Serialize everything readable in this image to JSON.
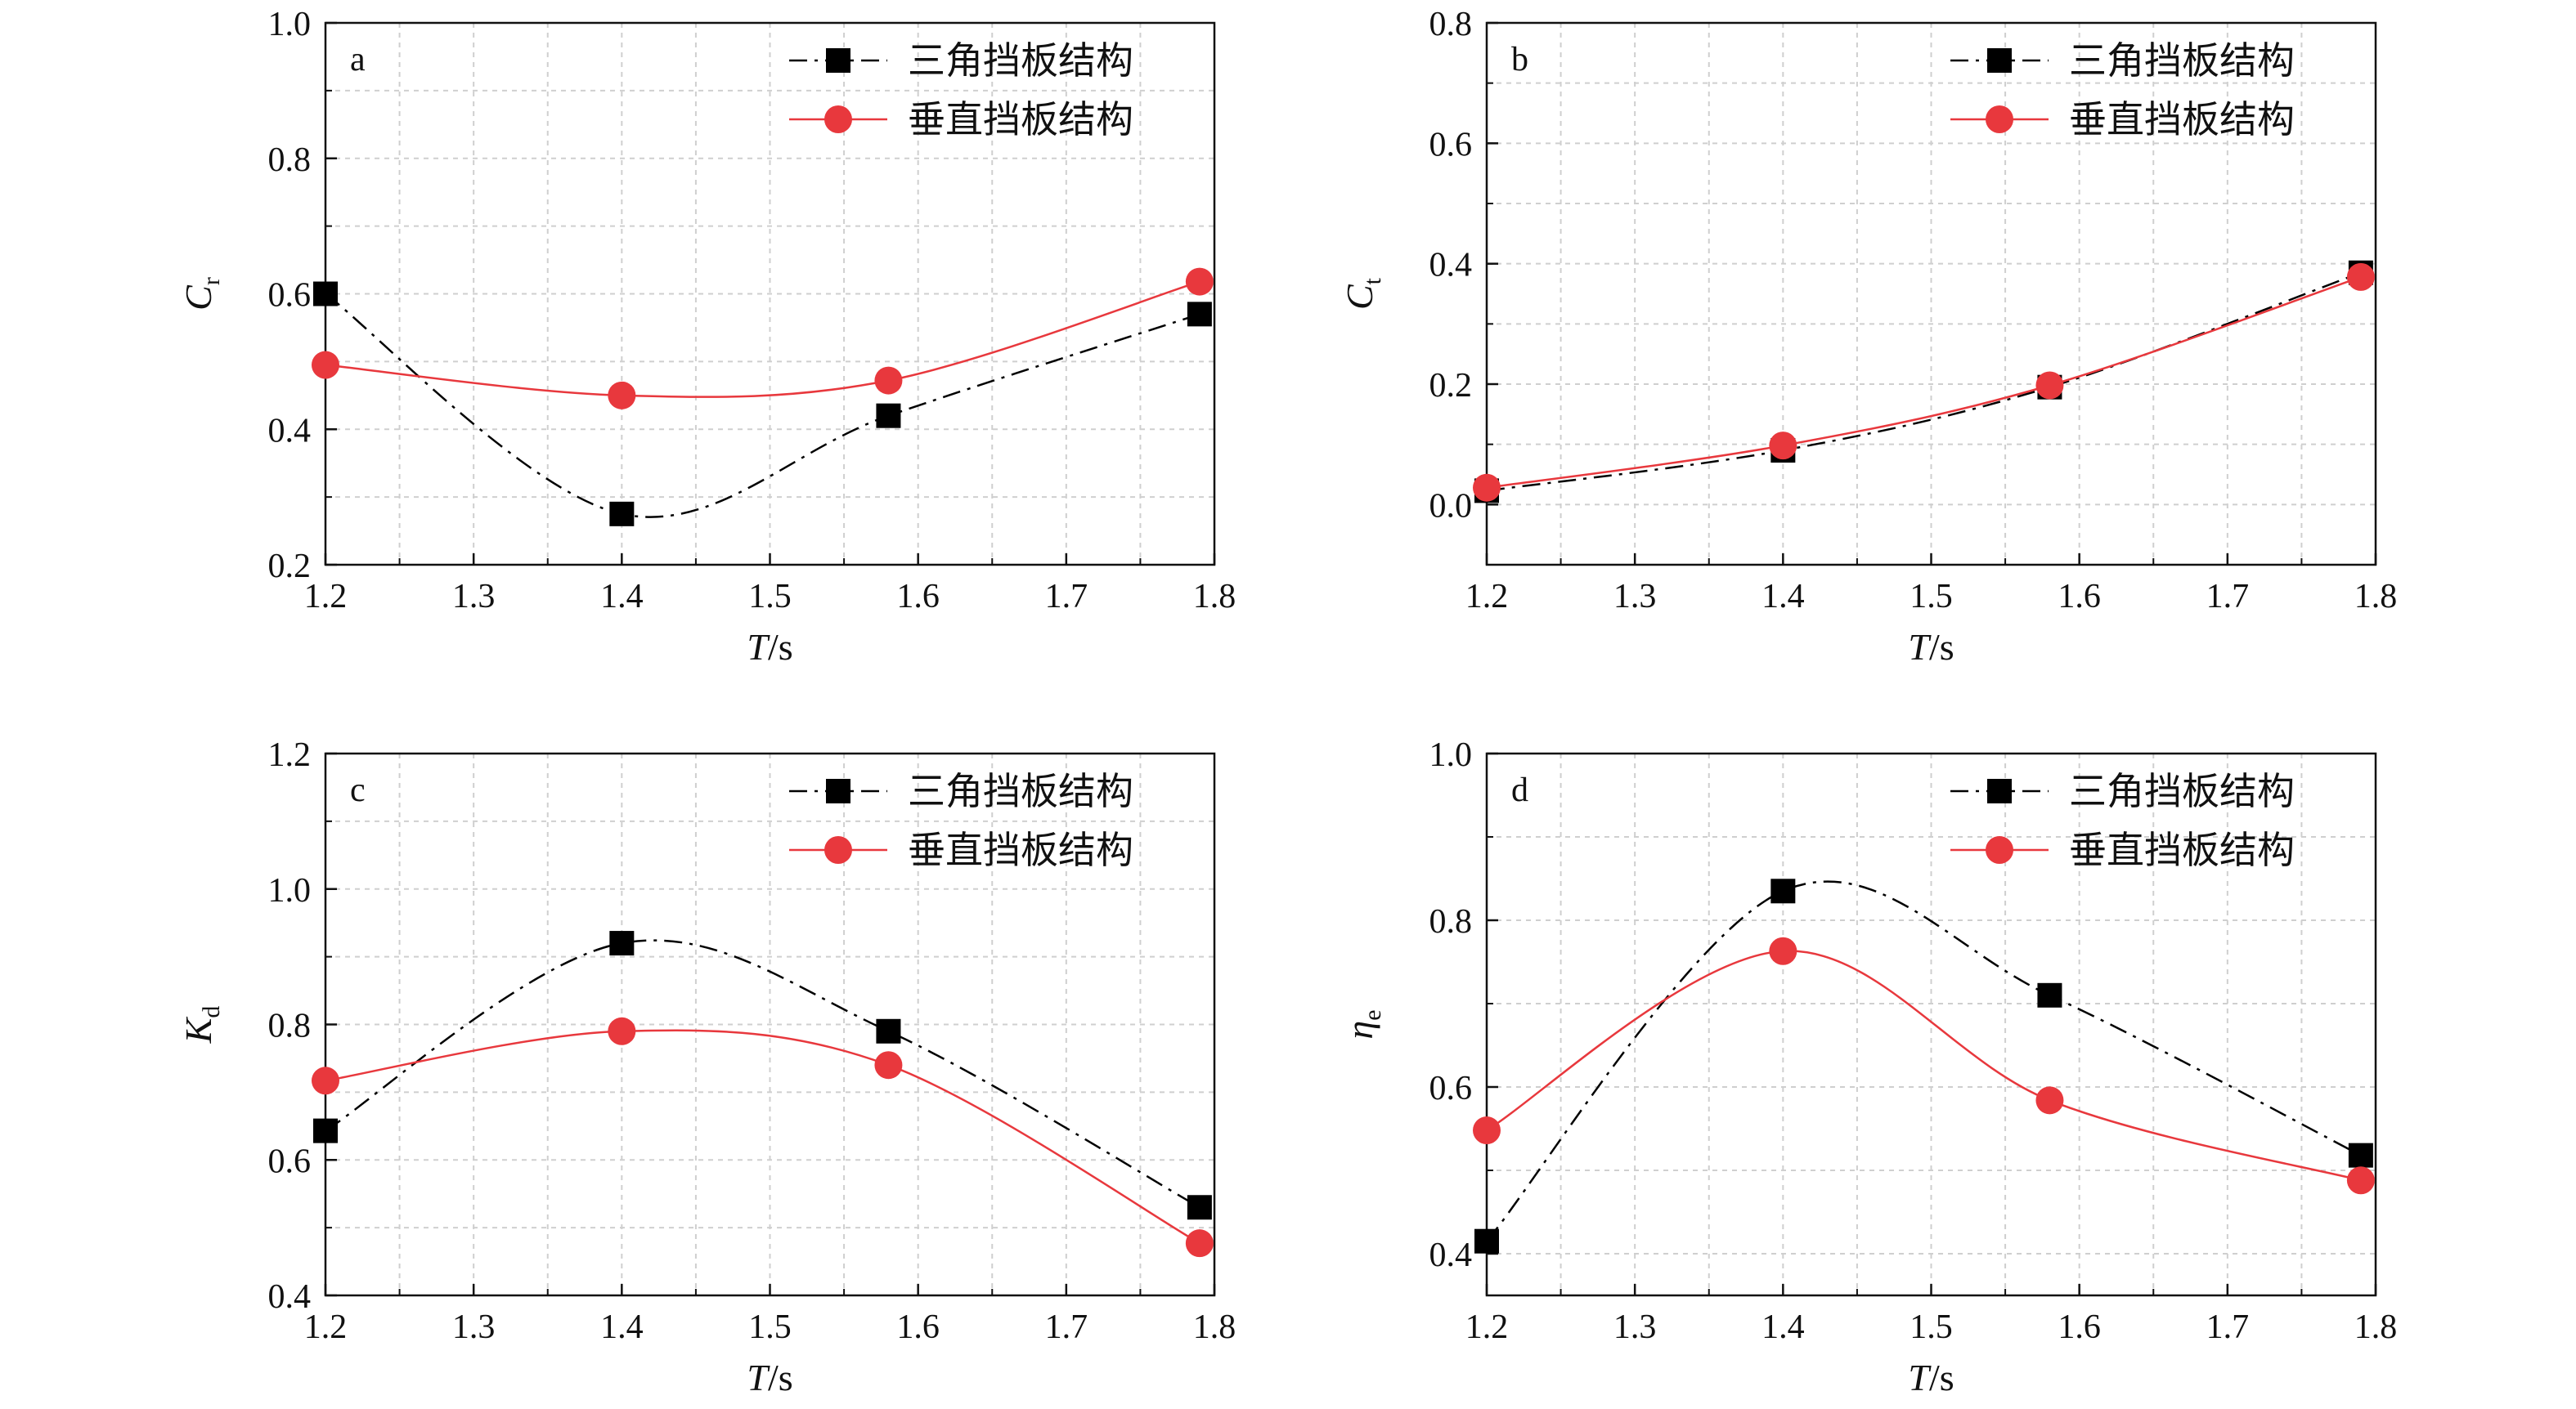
{
  "colors": {
    "triangle": "#000000",
    "vertical": "#e8383d",
    "grid": "#cfcfcf",
    "axis": "#111111"
  },
  "chart_data": [
    {
      "panel": "a",
      "type": "line",
      "xlabel": "T/s",
      "ylabel": "Cr",
      "xlim": [
        1.2,
        1.8
      ],
      "ylim": [
        0.2,
        1.0
      ],
      "xticks": [
        "1.2",
        "1.3",
        "1.4",
        "1.5",
        "1.6",
        "1.7",
        "1.8"
      ],
      "yticks": [
        "0.2",
        "0.4",
        "0.6",
        "0.8",
        "1.0"
      ],
      "x": [
        1.2,
        1.4,
        1.58,
        1.79
      ],
      "series": [
        {
          "name": "三角挡板结构",
          "marker": "square",
          "line": "dash-dot",
          "values": [
            0.6,
            0.275,
            0.42,
            0.57
          ]
        },
        {
          "name": "垂直挡板结构",
          "marker": "circle",
          "line": "solid",
          "values": [
            0.495,
            0.45,
            0.472,
            0.618
          ]
        }
      ],
      "legend": "top-right",
      "grid": true
    },
    {
      "panel": "b",
      "type": "line",
      "xlabel": "T/s",
      "ylabel": "Ct",
      "xlim": [
        1.2,
        1.8
      ],
      "ylim": [
        -0.1,
        0.8
      ],
      "xticks": [
        "1.2",
        "1.3",
        "1.4",
        "1.5",
        "1.6",
        "1.7",
        "1.8"
      ],
      "yticks": [
        "0.0",
        "0.2",
        "0.4",
        "0.6",
        "0.8"
      ],
      "x": [
        1.2,
        1.4,
        1.58,
        1.79
      ],
      "series": [
        {
          "name": "三角挡板结构",
          "marker": "square",
          "line": "dash-dot",
          "values": [
            0.023,
            0.09,
            0.195,
            0.385
          ]
        },
        {
          "name": "垂直挡板结构",
          "marker": "circle",
          "line": "solid",
          "values": [
            0.028,
            0.098,
            0.198,
            0.378
          ]
        }
      ],
      "legend": "top-right",
      "grid": true
    },
    {
      "panel": "c",
      "type": "line",
      "xlabel": "T/s",
      "ylabel": "Kd",
      "xlim": [
        1.2,
        1.8
      ],
      "ylim": [
        0.4,
        1.2
      ],
      "xticks": [
        "1.2",
        "1.3",
        "1.4",
        "1.5",
        "1.6",
        "1.7",
        "1.8"
      ],
      "yticks": [
        "0.4",
        "0.6",
        "0.8",
        "1.0",
        "1.2"
      ],
      "x": [
        1.2,
        1.4,
        1.58,
        1.79
      ],
      "series": [
        {
          "name": "三角挡板结构",
          "marker": "square",
          "line": "dash-dot",
          "values": [
            0.643,
            0.92,
            0.79,
            0.53
          ]
        },
        {
          "name": "垂直挡板结构",
          "marker": "circle",
          "line": "solid",
          "values": [
            0.717,
            0.79,
            0.74,
            0.477
          ]
        }
      ],
      "legend": "top-right",
      "grid": true
    },
    {
      "panel": "d",
      "type": "line",
      "xlabel": "T/s",
      "ylabel": "ηe",
      "xlim": [
        1.2,
        1.8
      ],
      "ylim": [
        0.35,
        1.0
      ],
      "xticks": [
        "1.2",
        "1.3",
        "1.4",
        "1.5",
        "1.6",
        "1.7",
        "1.8"
      ],
      "yticks": [
        "0.4",
        "0.6",
        "0.8",
        "1.0"
      ],
      "x": [
        1.2,
        1.4,
        1.58,
        1.79
      ],
      "series": [
        {
          "name": "三角挡板结构",
          "marker": "square",
          "line": "dash-dot",
          "values": [
            0.415,
            0.835,
            0.71,
            0.518
          ]
        },
        {
          "name": "垂直挡板结构",
          "marker": "circle",
          "line": "solid",
          "values": [
            0.548,
            0.763,
            0.584,
            0.488
          ]
        }
      ],
      "legend": "top-right",
      "grid": true
    }
  ]
}
